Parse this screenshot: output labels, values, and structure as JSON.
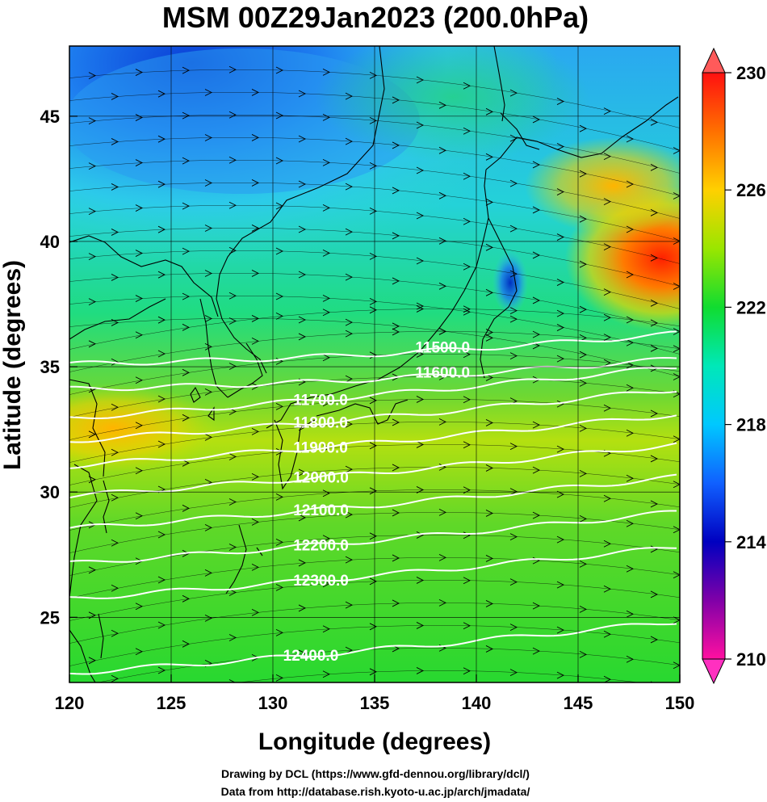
{
  "title": "MSM 00Z29Jan2023 (200.0hPa)",
  "xlabel": "Longitude (degrees)",
  "ylabel": "Latitude  (degrees)",
  "credits": [
    "Drawing by DCL (https://www.gfd-dennou.org/library/dcl/)",
    "Data from http://database.rish.kyoto-u.ac.jp/arch/jmadata/"
  ],
  "x_ticks": [
    "120",
    "125",
    "130",
    "135",
    "140",
    "145",
    "150"
  ],
  "y_ticks": [
    "45",
    "40",
    "35",
    "30",
    "25"
  ],
  "colorbar_ticks": [
    "230",
    "226",
    "222",
    "218",
    "214",
    "210"
  ],
  "contour_labels": [
    "11500.0",
    "11600.0",
    "11700.0",
    "11800.0",
    "11900.0",
    "12000.0",
    "12100.0",
    "12200.0",
    "12300.0",
    "12400.0"
  ],
  "chart_data": {
    "type": "heatmap",
    "title": "MSM 00Z29Jan2023 (200.0hPa)",
    "xlabel": "Longitude (degrees)",
    "ylabel": "Latitude  (degrees)",
    "xlim": [
      120,
      150
    ],
    "ylim": [
      22.4,
      47.8
    ],
    "colorbar": {
      "range": [
        210,
        230
      ],
      "ticks": [
        230,
        226,
        222,
        218,
        214,
        210
      ]
    },
    "colormap": [
      "#ff1493",
      "#8000a0",
      "#0000b4",
      "#0050ff",
      "#00c8ff",
      "#00e0b0",
      "#10dc40",
      "#c8e600",
      "#ffa000",
      "#ff0000"
    ],
    "contours": [
      {
        "value": 11500.0,
        "label_lon": 137.0,
        "label_lat": 35.8
      },
      {
        "value": 11600.0,
        "label_lon": 137.0,
        "label_lat": 34.8
      },
      {
        "value": 11700.0,
        "label_lon": 131.0,
        "label_lat": 33.7
      },
      {
        "value": 11800.0,
        "label_lon": 131.0,
        "label_lat": 32.8
      },
      {
        "value": 11900.0,
        "label_lon": 131.0,
        "label_lat": 31.8
      },
      {
        "value": 12000.0,
        "label_lon": 131.0,
        "label_lat": 30.6
      },
      {
        "value": 12100.0,
        "label_lon": 131.0,
        "label_lat": 29.3
      },
      {
        "value": 12200.0,
        "label_lon": 131.0,
        "label_lat": 27.9
      },
      {
        "value": 12300.0,
        "label_lon": 131.0,
        "label_lat": 26.5
      },
      {
        "value": 12400.0,
        "label_lon": 130.5,
        "label_lat": 23.5
      }
    ],
    "grid": true
  },
  "colors": {
    "contour": "#ffffff",
    "wind_arrows": "#000000",
    "coastline": "#000000"
  }
}
